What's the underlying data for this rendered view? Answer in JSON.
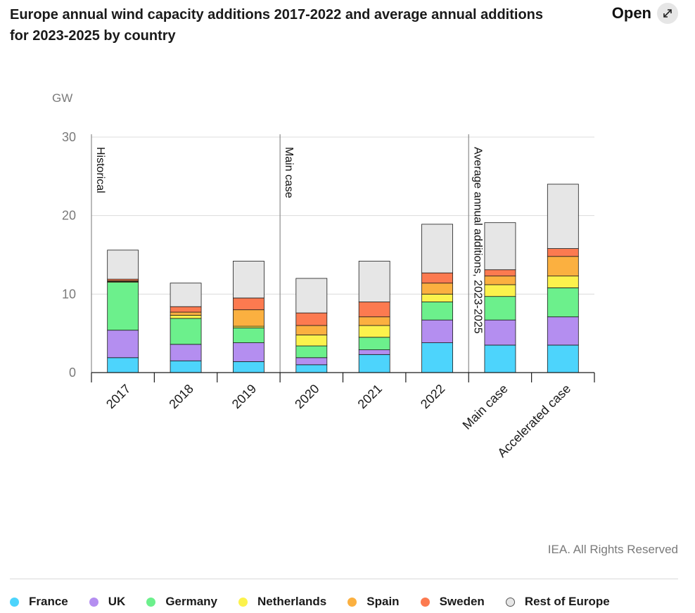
{
  "header": {
    "title": "Europe annual wind capacity additions 2017-2022 and average annual additions for 2023-2025 by country",
    "open_label": "Open",
    "open_icon": "expand-arrows-icon"
  },
  "credit": "IEA. All Rights Reserved",
  "chart_data": {
    "type": "bar",
    "stacked": true,
    "ylabel": "GW",
    "xlabel": "",
    "ylim": [
      0,
      30
    ],
    "yticks": [
      0,
      10,
      20,
      30
    ],
    "grid": true,
    "categories": [
      "2017",
      "2018",
      "2019",
      "2020",
      "2021",
      "2022",
      "Main case",
      "Accelerated case"
    ],
    "sections": [
      {
        "label": "Historical",
        "start": 0
      },
      {
        "label": "Main case",
        "start": 3
      },
      {
        "label": "Average annual additions, 2023-2025",
        "start": 6
      }
    ],
    "series": [
      {
        "name": "France",
        "color": "#4dd4fc",
        "values": [
          1.9,
          1.5,
          1.4,
          1.0,
          2.3,
          3.8,
          3.5,
          3.5
        ]
      },
      {
        "name": "UK",
        "color": "#b48ef0",
        "values": [
          3.5,
          2.1,
          2.4,
          0.9,
          0.6,
          2.9,
          3.2,
          3.6
        ]
      },
      {
        "name": "Germany",
        "color": "#6cf08c",
        "values": [
          6.1,
          3.3,
          1.9,
          1.5,
          1.6,
          2.3,
          3.0,
          3.7
        ]
      },
      {
        "name": "Netherlands",
        "color": "#fcf24c",
        "values": [
          0.1,
          0.4,
          0.2,
          1.4,
          1.5,
          1.0,
          1.5,
          1.5
        ]
      },
      {
        "name": "Spain",
        "color": "#fbb040",
        "values": [
          0.1,
          0.4,
          2.1,
          1.2,
          1.1,
          1.4,
          1.1,
          2.5
        ]
      },
      {
        "name": "Sweden",
        "color": "#fc7a50",
        "values": [
          0.2,
          0.7,
          1.5,
          1.6,
          1.9,
          1.3,
          0.8,
          1.0
        ]
      },
      {
        "name": "Rest of Europe",
        "color": "#e6e6e6",
        "values": [
          3.7,
          3.0,
          4.7,
          4.4,
          5.2,
          6.2,
          6.0,
          8.2
        ]
      }
    ]
  }
}
